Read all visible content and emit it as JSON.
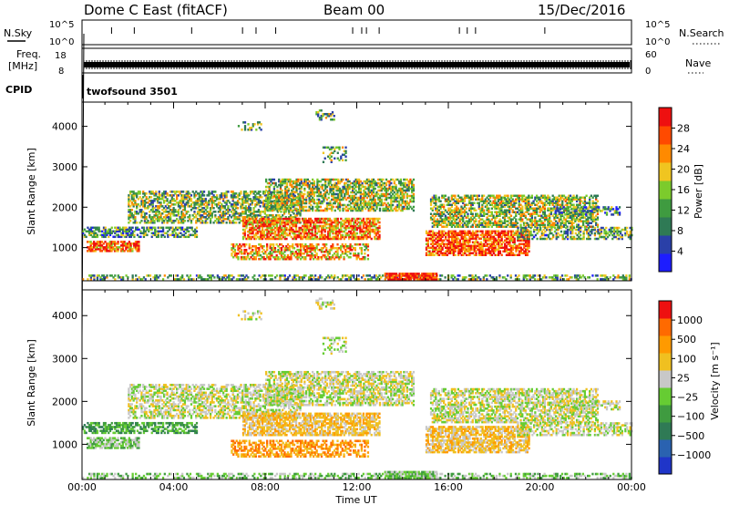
{
  "header": {
    "title": "Dome C East (fitACF)",
    "beam": "Beam 00",
    "date": "15/Dec/2016"
  },
  "strips": {
    "nsky_label": "N.Sky",
    "nsearch_label": "N.Search",
    "freq_label_line1": "Freq.",
    "freq_label_line2": "[MHz]",
    "nave_label": "Nave",
    "cpid_label": "CPID",
    "cpid_value": "twofsound 3501",
    "nsky_ticks": [
      "10^5",
      "10^0"
    ],
    "nsearch_ticks": [
      "10^5",
      "10^0"
    ],
    "freq_ticks": [
      "18",
      "8"
    ],
    "nave_ticks": [
      "60",
      "0"
    ]
  },
  "chart_data": [
    {
      "type": "heatmap",
      "name": "power",
      "ylabel": "Slant Range [km]",
      "xlabel": "Time UT",
      "x_ticks": [
        "00:00",
        "04:00",
        "08:00",
        "12:00",
        "16:00",
        "20:00",
        "00:00"
      ],
      "x_range_hours": [
        0,
        24
      ],
      "y_ticks": [
        1000,
        2000,
        3000,
        4000
      ],
      "ylim": [
        180,
        4600
      ],
      "colorbar_label": "Power [dB]",
      "colorbar_ticks": [
        4,
        8,
        12,
        16,
        20,
        24,
        28
      ],
      "colorbar_range": [
        0,
        30
      ],
      "colors": [
        "#1d1dff",
        "#2a40a8",
        "#2f7a55",
        "#3f9b40",
        "#7ccb2c",
        "#f0c520",
        "#ff8a00",
        "#ff4a00",
        "#ee1010"
      ]
    },
    {
      "type": "heatmap",
      "name": "velocity",
      "ylabel": "Slant Range [km]",
      "xlabel": "Time UT",
      "x_ticks": [
        "00:00",
        "04:00",
        "08:00",
        "12:00",
        "16:00",
        "20:00",
        "00:00"
      ],
      "x_range_hours": [
        0,
        24
      ],
      "y_ticks": [
        1000,
        2000,
        3000,
        4000
      ],
      "ylim": [
        180,
        4600
      ],
      "colorbar_label": "Velocity [m s⁻¹]",
      "colorbar_ticks": [
        "1000",
        "500",
        "100",
        "25",
        "−25",
        "−100",
        "−500",
        "−1000"
      ],
      "colors": [
        "#1f35c8",
        "#2a62b0",
        "#2f7a55",
        "#3f9b40",
        "#66cc33",
        "#c8c8c8",
        "#f0c020",
        "#ff9a00",
        "#ff6a00",
        "#ee1010"
      ]
    }
  ]
}
